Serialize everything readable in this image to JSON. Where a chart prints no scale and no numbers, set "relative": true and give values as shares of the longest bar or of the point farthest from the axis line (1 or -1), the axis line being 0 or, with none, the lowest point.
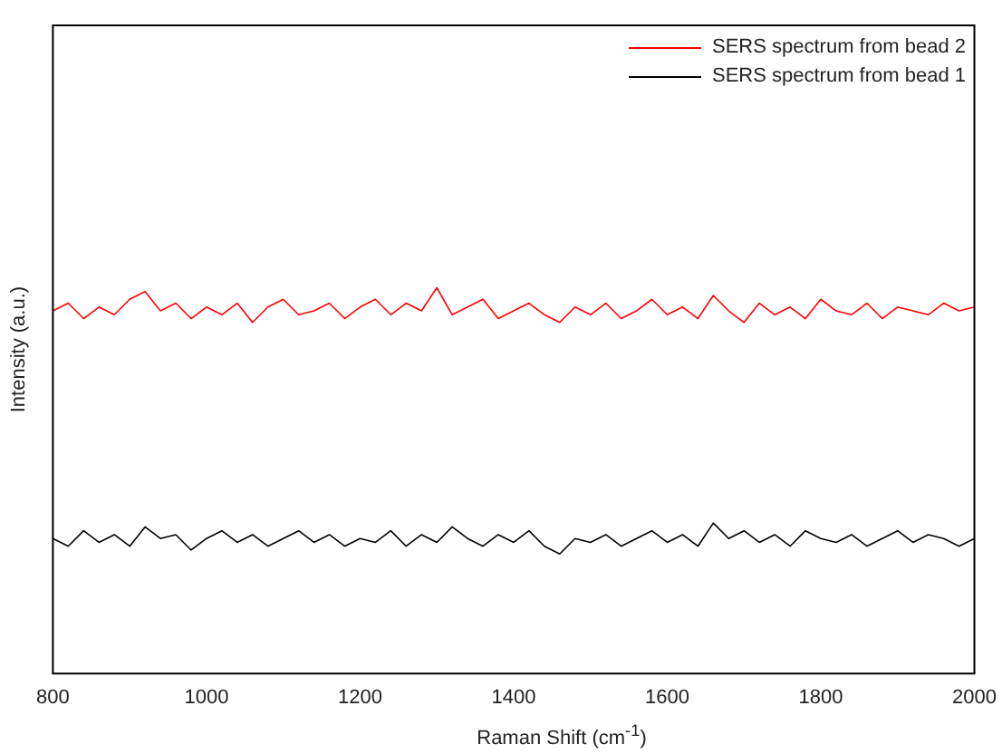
{
  "chart_data": {
    "type": "line",
    "xlabel": "Raman Shift (cm$^{-1}$)",
    "ylabel": "Intensity (a.u.)",
    "relative": true,
    "xlim": [
      800,
      2000
    ],
    "xticks": [
      800,
      1000,
      1200,
      1400,
      1600,
      1800,
      2000
    ],
    "tick_labels": "x",
    "grid": false,
    "legend": "top right",
    "marker": "none",
    "line_style": "solid",
    "x": [
      800,
      820,
      840,
      860,
      880,
      900,
      920,
      940,
      960,
      980,
      1000,
      1020,
      1040,
      1060,
      1080,
      1100,
      1120,
      1140,
      1160,
      1180,
      1200,
      1220,
      1240,
      1260,
      1280,
      1300,
      1320,
      1340,
      1360,
      1380,
      1400,
      1420,
      1440,
      1460,
      1480,
      1500,
      1520,
      1540,
      1560,
      1580,
      1600,
      1620,
      1640,
      1660,
      1680,
      1700,
      1720,
      1740,
      1760,
      1780,
      1800,
      1820,
      1840,
      1860,
      1880,
      1900,
      1920,
      1940,
      1960,
      1980,
      2000
    ],
    "series": [
      {
        "name": "SERS spectrum from bead 2",
        "color": "#ff0000",
        "values": [
          0.94,
          0.96,
          0.92,
          0.95,
          0.93,
          0.97,
          0.99,
          0.94,
          0.96,
          0.92,
          0.95,
          0.93,
          0.96,
          0.91,
          0.95,
          0.97,
          0.93,
          0.94,
          0.96,
          0.92,
          0.95,
          0.97,
          0.93,
          0.96,
          0.94,
          1.0,
          0.93,
          0.95,
          0.97,
          0.92,
          0.94,
          0.96,
          0.93,
          0.91,
          0.95,
          0.93,
          0.96,
          0.92,
          0.94,
          0.97,
          0.93,
          0.95,
          0.92,
          0.98,
          0.94,
          0.91,
          0.96,
          0.93,
          0.95,
          0.92,
          0.97,
          0.94,
          0.93,
          0.96,
          0.92,
          0.95,
          0.94,
          0.93,
          0.96,
          0.94,
          0.95
        ]
      },
      {
        "name": "SERS spectrum from bead 1",
        "color": "#000000",
        "values": [
          0.35,
          0.33,
          0.37,
          0.34,
          0.36,
          0.33,
          0.38,
          0.35,
          0.36,
          0.32,
          0.35,
          0.37,
          0.34,
          0.36,
          0.33,
          0.35,
          0.37,
          0.34,
          0.36,
          0.33,
          0.35,
          0.34,
          0.37,
          0.33,
          0.36,
          0.34,
          0.38,
          0.35,
          0.33,
          0.36,
          0.34,
          0.37,
          0.33,
          0.31,
          0.35,
          0.34,
          0.36,
          0.33,
          0.35,
          0.37,
          0.34,
          0.36,
          0.33,
          0.39,
          0.35,
          0.37,
          0.34,
          0.36,
          0.33,
          0.37,
          0.35,
          0.34,
          0.36,
          0.33,
          0.35,
          0.37,
          0.34,
          0.36,
          0.35,
          0.33,
          0.35
        ]
      }
    ]
  }
}
